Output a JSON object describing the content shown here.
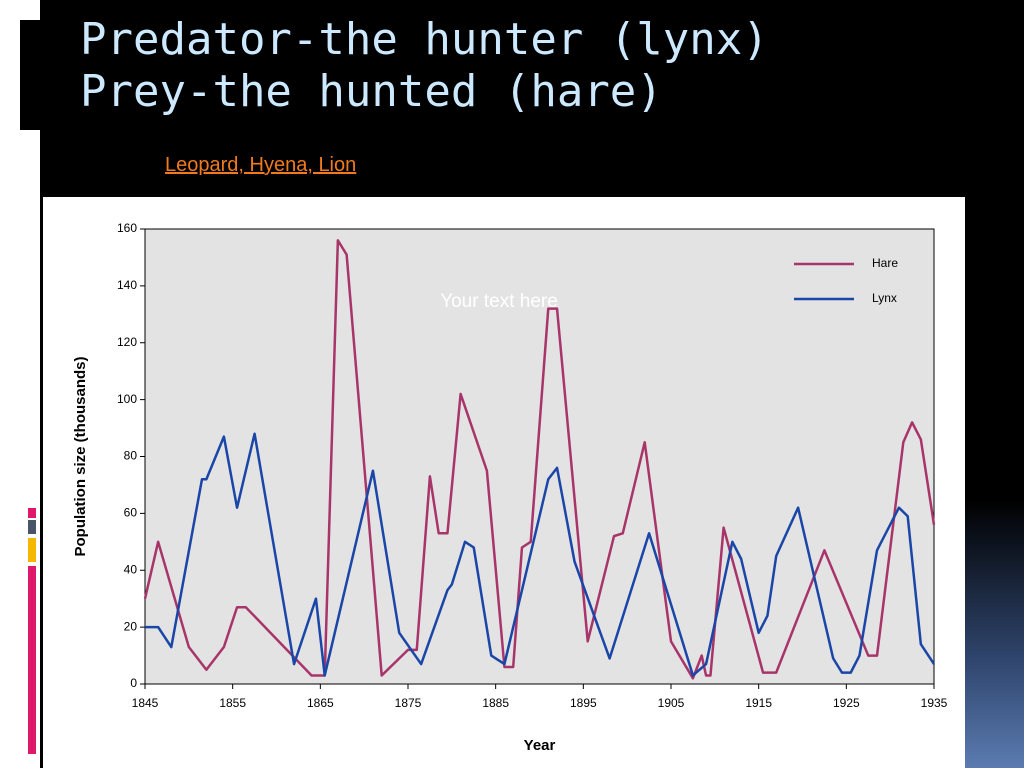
{
  "slide_title": [
    "Predator-the hunter (lynx)",
    "Prey-the hunted (hare)"
  ],
  "link": "Leopard, Hyena, Lion",
  "chart_data": {
    "type": "line",
    "annotation": "Your text here",
    "x_label": "Year",
    "y_label": "Population size (thousands)",
    "xlim": [
      1845,
      1935
    ],
    "xticks": [
      1845,
      1855,
      1865,
      1875,
      1885,
      1895,
      1905,
      1915,
      1925,
      1935
    ],
    "ylim": [
      0,
      160
    ],
    "yticks": [
      0,
      20,
      40,
      60,
      80,
      100,
      120,
      140,
      160
    ],
    "legend": "upper right",
    "series": [
      {
        "name": "Hare",
        "color": "#a8356a",
        "x": [
          1845,
          1846.5,
          1850,
          1852,
          1854,
          1855.5,
          1856.5,
          1864,
          1865.5,
          1867,
          1868,
          1872,
          1875,
          1876,
          1877.5,
          1878.5,
          1879.5,
          1881,
          1884,
          1886,
          1887,
          1888,
          1889,
          1891,
          1892,
          1895.5,
          1898.5,
          1899.5,
          1902,
          1905,
          1907.5,
          1908.5,
          1909,
          1909.5,
          1911,
          1915.5,
          1917,
          1922.5,
          1927.5,
          1928.5,
          1931.5,
          1932.5,
          1933.5,
          1935
        ],
        "values": [
          30,
          50,
          13,
          5,
          13,
          27,
          27,
          3,
          3,
          156,
          151,
          3,
          12,
          12,
          73,
          53,
          53,
          102,
          75,
          6,
          6,
          48,
          50,
          132,
          132,
          15,
          52,
          53,
          85,
          15,
          2,
          10,
          3,
          3,
          55,
          4,
          4,
          47,
          10,
          10,
          85,
          92,
          86,
          56
        ]
      },
      {
        "name": "Lynx",
        "color": "#1a46a8",
        "x": [
          1845,
          1846.5,
          1848,
          1851.5,
          1852,
          1854,
          1855.5,
          1857.5,
          1862,
          1864.5,
          1865.5,
          1871,
          1874,
          1876.5,
          1879.5,
          1880,
          1881.5,
          1882.5,
          1884.5,
          1886,
          1891,
          1892,
          1894,
          1898,
          1902.5,
          1907.5,
          1909,
          1912,
          1913,
          1915,
          1916,
          1917,
          1919.5,
          1923.5,
          1924.5,
          1925.5,
          1926.5,
          1928.5,
          1931,
          1932,
          1933.5,
          1935
        ],
        "values": [
          20,
          20,
          13,
          72,
          72,
          87,
          62,
          88,
          7,
          30,
          3,
          75,
          18,
          7,
          33,
          35,
          50,
          48,
          10,
          7,
          72,
          76,
          43,
          9,
          53,
          3,
          7,
          50,
          44,
          18,
          24,
          45,
          62,
          9,
          4,
          4,
          10,
          47,
          62,
          59,
          14,
          7
        ]
      }
    ]
  }
}
